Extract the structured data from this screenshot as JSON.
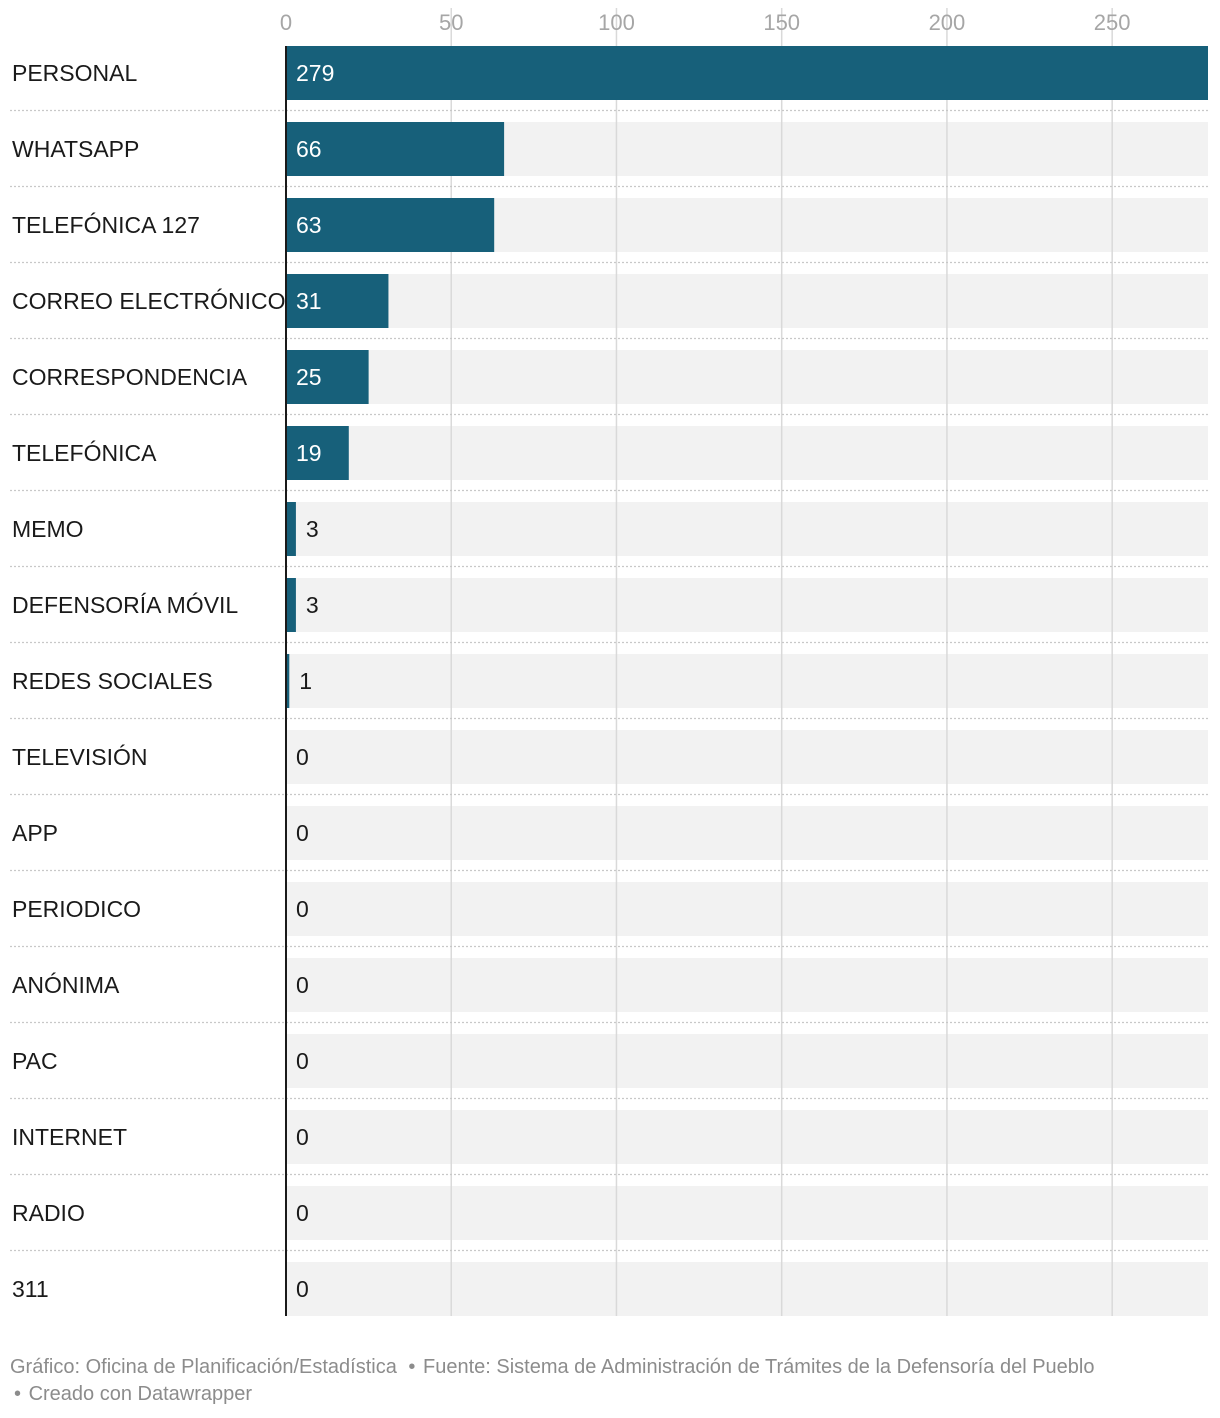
{
  "chart_data": {
    "type": "bar",
    "orientation": "horizontal",
    "categories": [
      "PERSONAL",
      "WHATSAPP",
      "TELEFÓNICA 127",
      "CORREO ELECTRÓNICO",
      "CORRESPONDENCIA",
      "TELEFÓNICA",
      "MEMO",
      "DEFENSORÍA MÓVIL",
      "REDES SOCIALES",
      "TELEVISIÓN",
      "APP",
      "PERIODICO",
      "ANÓNIMA",
      "PAC",
      "INTERNET",
      "RADIO",
      "311"
    ],
    "values": [
      279,
      66,
      63,
      31,
      25,
      19,
      3,
      3,
      1,
      0,
      0,
      0,
      0,
      0,
      0,
      0,
      0
    ],
    "xlim": [
      0,
      279
    ],
    "x_ticks": [
      0,
      50,
      100,
      150,
      200,
      250
    ],
    "x_axis_position": "top",
    "grid": true,
    "data_labels": true,
    "colors": {
      "bar": "#17607a",
      "track": "#f2f2f2",
      "grid": "#d9d9d9",
      "tick_text": "#a6a6a6",
      "category_text": "#1a1a1a",
      "label_inside": "#ffffff",
      "label_outside": "#1a1a1a",
      "separator": "#c8c8c8",
      "axis_line": "#1a1a1a"
    }
  },
  "footer": {
    "graphic": "Gráfico: Oficina de Planificación/Estadística",
    "source": "Fuente: Sistema de Administración de Trámites de la Defensoría del Pueblo",
    "credit": "Creado con Datawrapper",
    "separator": "•"
  }
}
